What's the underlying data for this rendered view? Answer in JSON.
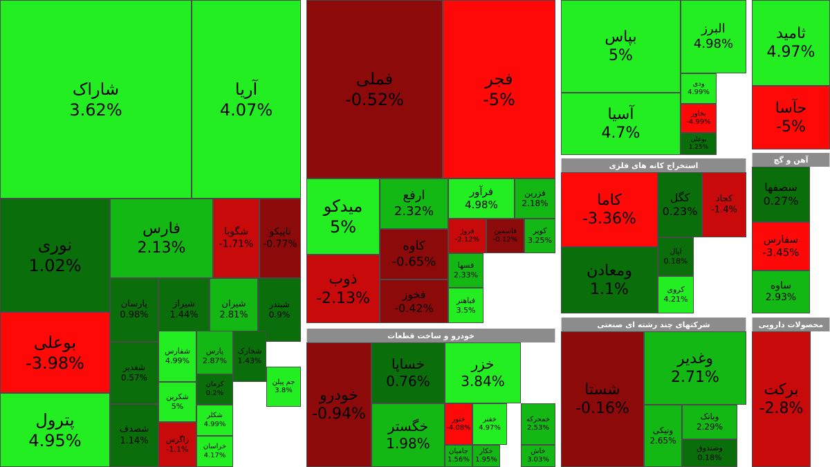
{
  "chart_data": {
    "type": "treemap",
    "value_unit": "%",
    "color_scale": {
      "up_strong": "#22ee22",
      "up_mid": "#14b814",
      "up_weak": "#0a6e0a",
      "down_weak": "#8c0a0a",
      "down_mid": "#c80a0a",
      "down_strong": "#ff0808"
    },
    "sectors": [
      {
        "name": "",
        "tiles": [
          {
            "symbol": "شاراک",
            "change": 3.62
          },
          {
            "symbol": "آریا",
            "change": 4.07
          },
          {
            "symbol": "نوری",
            "change": 1.02
          },
          {
            "symbol": "فارس",
            "change": 2.13
          },
          {
            "symbol": "شگویا",
            "change": -1.71
          },
          {
            "symbol": "تاپیکو",
            "change": -0.77
          },
          {
            "symbol": "بوعلی",
            "change": -3.98
          },
          {
            "symbol": "پارسان",
            "change": 0.98
          },
          {
            "symbol": "شیراز",
            "change": 1.44
          },
          {
            "symbol": "شیران",
            "change": 2.81
          },
          {
            "symbol": "شبندر",
            "change": 0.9
          },
          {
            "symbol": "شغدیر",
            "change": 0.57
          },
          {
            "symbol": "شفارس",
            "change": 4.99
          },
          {
            "symbol": "پارس",
            "change": 2.87
          },
          {
            "symbol": "شخارک",
            "change": 1.43
          },
          {
            "symbol": "شکربن",
            "change": 5
          },
          {
            "symbol": "کرمان",
            "change": 0.2
          },
          {
            "symbol": "جم پیلن",
            "change": 3.8
          },
          {
            "symbol": "پترول",
            "change": 4.95
          },
          {
            "symbol": "شصدف",
            "change": 1.14
          },
          {
            "symbol": "شکلر",
            "change": 4.99
          },
          {
            "symbol": "خراسان",
            "change": 4.17
          },
          {
            "symbol": "زاگرس",
            "change": -1.1
          }
        ]
      },
      {
        "name": "",
        "tiles": [
          {
            "symbol": "فملی",
            "change": -0.52
          },
          {
            "symbol": "فجر",
            "change": -5
          },
          {
            "symbol": "میدکو",
            "change": 5
          },
          {
            "symbol": "ارفع",
            "change": 2.32
          },
          {
            "symbol": "فرآور",
            "change": 4.98
          },
          {
            "symbol": "فزرین",
            "change": 2.18
          },
          {
            "symbol": "کاوه",
            "change": -0.65
          },
          {
            "symbol": "فروژ",
            "change": -2.12
          },
          {
            "symbol": "فاسمین",
            "change": -0.12
          },
          {
            "symbol": "کویر",
            "change": 3.25
          },
          {
            "symbol": "ذوب",
            "change": -2.13
          },
          {
            "symbol": "فخوز",
            "change": -0.42
          },
          {
            "symbol": "فسها",
            "change": 2.33
          },
          {
            "symbol": "فباهنر",
            "change": 3.5
          }
        ]
      },
      {
        "name": "خودرو و ساخت قطعات",
        "tiles": [
          {
            "symbol": "خودرو",
            "change": -0.94
          },
          {
            "symbol": "خساپا",
            "change": 0.76
          },
          {
            "symbol": "خزر",
            "change": 3.84
          },
          {
            "symbol": "خگستر",
            "change": 1.98
          },
          {
            "symbol": "ختور",
            "change": -4.08
          },
          {
            "symbol": "خفنر",
            "change": 4.97
          },
          {
            "symbol": "خمحرکه",
            "change": 2.53
          },
          {
            "symbol": "خکار",
            "change": 1.95
          },
          {
            "symbol": "جامیان",
            "change": 1.56
          },
          {
            "symbol": "خاش",
            "change": 3.03
          }
        ]
      },
      {
        "name": "",
        "tiles": [
          {
            "symbol": "بپاس",
            "change": 5
          },
          {
            "symbol": "البرز",
            "change": 4.98
          },
          {
            "symbol": "آسیا",
            "change": 4.7
          },
          {
            "symbol": "ودی",
            "change": 4.99
          },
          {
            "symbol": "بخاور",
            "change": -4.99
          },
          {
            "symbol": "بوعلی",
            "change": 1.25
          }
        ]
      },
      {
        "name": "",
        "tiles": [
          {
            "symbol": "ثامید",
            "change": 4.97
          },
          {
            "symbol": "حآسا",
            "change": -5
          }
        ]
      },
      {
        "name": "استخراج کانه های فلزی",
        "tiles": [
          {
            "symbol": "کاما",
            "change": -3.36
          },
          {
            "symbol": "کگل",
            "change": 0.23
          },
          {
            "symbol": "کجاد",
            "change": -1.4
          },
          {
            "symbol": "ومعادن",
            "change": 1.1
          },
          {
            "symbol": "اپال",
            "change": 0.18
          },
          {
            "symbol": "کروی",
            "change": 4.21
          }
        ]
      },
      {
        "name": "آهن و گچ",
        "tiles": [
          {
            "symbol": "سصفها",
            "change": 0.27
          },
          {
            "symbol": "سفارس",
            "change": -3.45
          },
          {
            "symbol": "ساوه",
            "change": 2.93
          }
        ]
      },
      {
        "name": "شرکتهای چند رشته ای صنعتی",
        "tiles": [
          {
            "symbol": "شستا",
            "change": -0.16
          },
          {
            "symbol": "وغدیر",
            "change": 2.71
          },
          {
            "symbol": "ونیکی",
            "change": 2.65
          },
          {
            "symbol": "وبانک",
            "change": 2.29
          },
          {
            "symbol": "وصندوق",
            "change": 0.18
          }
        ]
      },
      {
        "name": "محصولات دارویی",
        "tiles": [
          {
            "symbol": "برکت",
            "change": -2.8
          }
        ]
      }
    ]
  }
}
